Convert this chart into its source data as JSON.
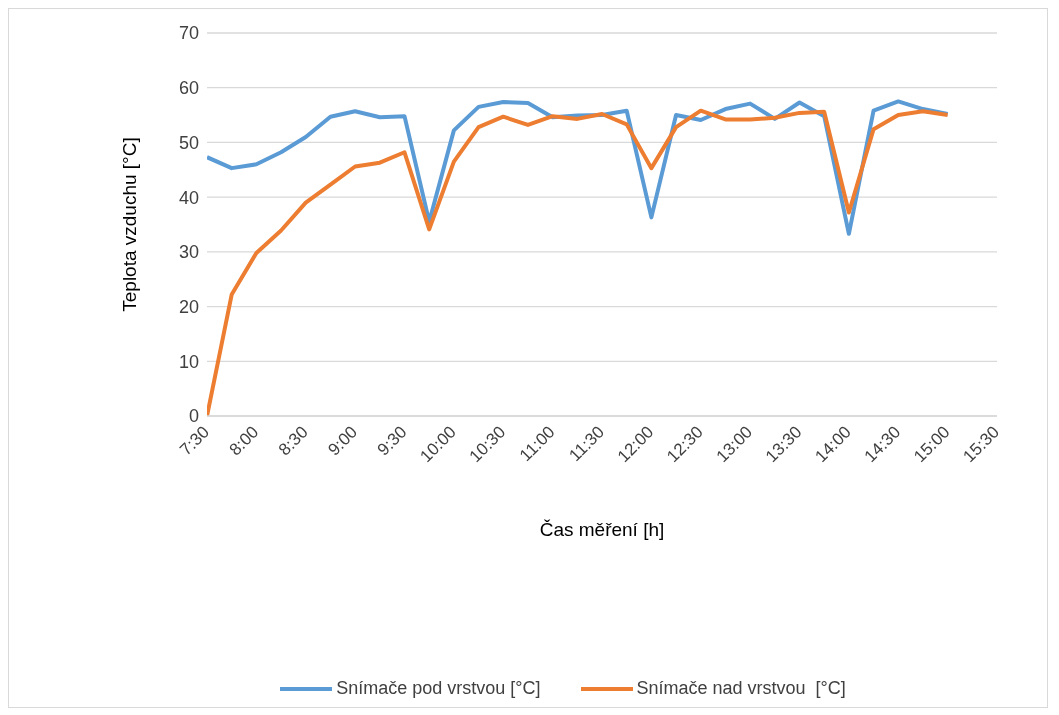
{
  "chart_data": {
    "type": "line",
    "xlabel": "Čas měření [h]",
    "ylabel": "Teplota vzduchu [°C]",
    "x": [
      7.5,
      7.75,
      8,
      8.25,
      8.5,
      8.75,
      9,
      9.25,
      9.5,
      9.75,
      10,
      10.25,
      10.5,
      10.75,
      11,
      11.25,
      11.5,
      11.75,
      12,
      12.25,
      12.5,
      12.75,
      13,
      13.25,
      13.5,
      13.75,
      14,
      14.25,
      14.5,
      14.75,
      15
    ],
    "series": [
      {
        "name": "Snímače pod vrstvou [°C]",
        "color": "#5b9bd5",
        "values": [
          47.3,
          45.3,
          46,
          48.2,
          51,
          54.7,
          55.7,
          54.6,
          54.8,
          35.5,
          52.2,
          56.5,
          57.4,
          57.2,
          54.6,
          54.9,
          55,
          55.8,
          36.3,
          55,
          54.1,
          56.1,
          57.1,
          54.3,
          57.3,
          54.8,
          33.3,
          55.8,
          57.5,
          56.1,
          55.2
        ]
      },
      {
        "name": "Snímače nad vrstvou  [°C]",
        "color": "#ed7d31",
        "values": [
          0,
          22.2,
          29.8,
          33.9,
          39,
          42.3,
          45.6,
          46.3,
          48.2,
          34.1,
          46.5,
          52.8,
          54.7,
          53.2,
          54.8,
          54.3,
          55.2,
          53.3,
          45.3,
          52.8,
          55.8,
          54.2,
          54.2,
          54.5,
          55.4,
          55.6,
          37.2,
          52.4,
          55,
          55.7,
          55
        ]
      }
    ],
    "xlim": [
      7.5,
      15.5
    ],
    "xticks": [
      {
        "value": 7.5,
        "label": "7:30"
      },
      {
        "value": 8,
        "label": "8:00"
      },
      {
        "value": 8.5,
        "label": "8:30"
      },
      {
        "value": 9,
        "label": "9:00"
      },
      {
        "value": 9.5,
        "label": "9:30"
      },
      {
        "value": 10,
        "label": "10:00"
      },
      {
        "value": 10.5,
        "label": "10:30"
      },
      {
        "value": 11,
        "label": "11:00"
      },
      {
        "value": 11.5,
        "label": "11:30"
      },
      {
        "value": 12,
        "label": "12:00"
      },
      {
        "value": 12.5,
        "label": "12:30"
      },
      {
        "value": 13,
        "label": "13:00"
      },
      {
        "value": 13.5,
        "label": "13:30"
      },
      {
        "value": 14,
        "label": "14:00"
      },
      {
        "value": 14.5,
        "label": "14:30"
      },
      {
        "value": 15,
        "label": "15:00"
      },
      {
        "value": 15.5,
        "label": "15:30"
      }
    ],
    "ylim": [
      0,
      70
    ],
    "yticks": [
      0,
      10,
      20,
      30,
      40,
      50,
      60,
      70
    ],
    "grid": "y",
    "legend": "bottom",
    "marker": "none",
    "line_style": "solid"
  }
}
